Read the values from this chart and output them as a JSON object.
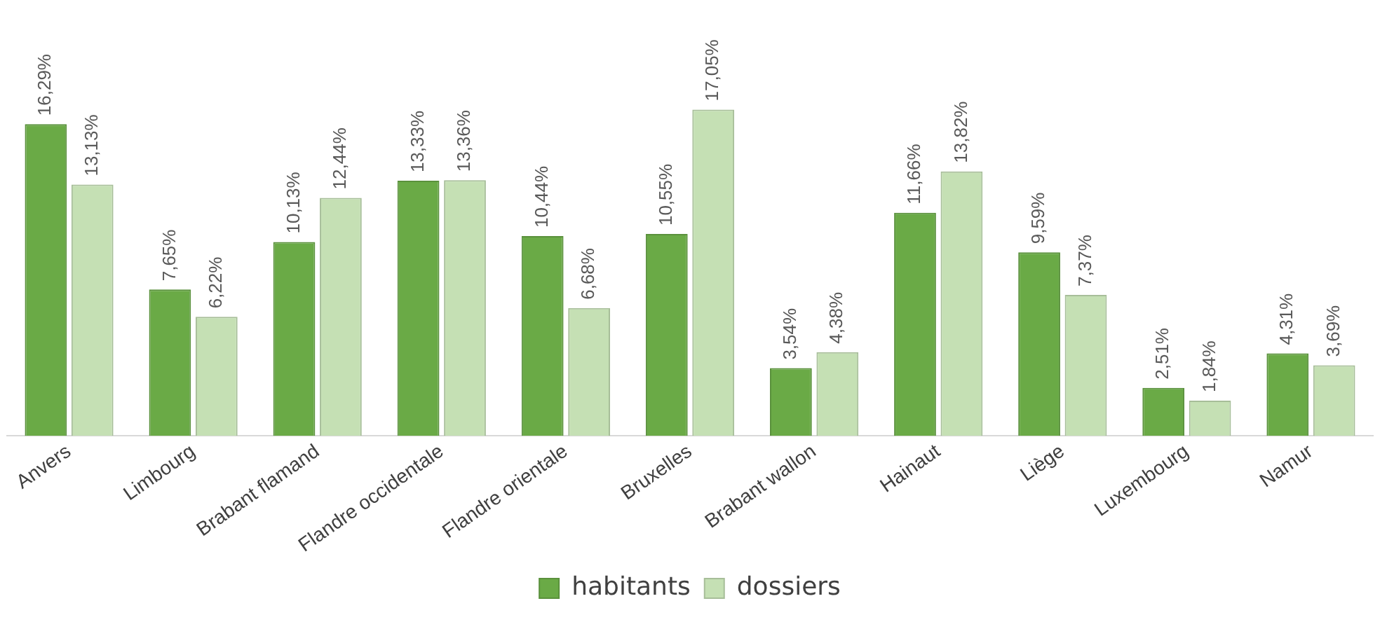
{
  "chart_data": {
    "type": "bar",
    "categories": [
      "Anvers",
      "Limbourg",
      "Brabant flamand",
      "Flandre occidentale",
      "Flandre orientale",
      "Bruxelles",
      "Brabant wallon",
      "Hainaut",
      "Liège",
      "Luxembourg",
      "Namur"
    ],
    "series": [
      {
        "name": "habitants",
        "color": "#6aaa46",
        "values": [
          16.29,
          7.65,
          10.13,
          13.33,
          10.44,
          10.55,
          3.54,
          11.66,
          9.59,
          2.51,
          4.31
        ],
        "value_labels": [
          "16,29%",
          "7,65%",
          "10,13%",
          "13,33%",
          "10,44%",
          "10,55%",
          "3,54%",
          "11,66%",
          "9,59%",
          "2,51%",
          "4,31%"
        ]
      },
      {
        "name": "dossiers",
        "color": "#c5e0b4",
        "values": [
          13.13,
          6.22,
          12.44,
          13.36,
          6.68,
          17.05,
          4.38,
          13.82,
          7.37,
          1.84,
          3.69
        ],
        "value_labels": [
          "13,13%",
          "6,22%",
          "12,44%",
          "13,36%",
          "6,68%",
          "17,05%",
          "4,38%",
          "13,82%",
          "7,37%",
          "1,84%",
          "3,69%"
        ]
      }
    ],
    "legend": "bottom"
  }
}
